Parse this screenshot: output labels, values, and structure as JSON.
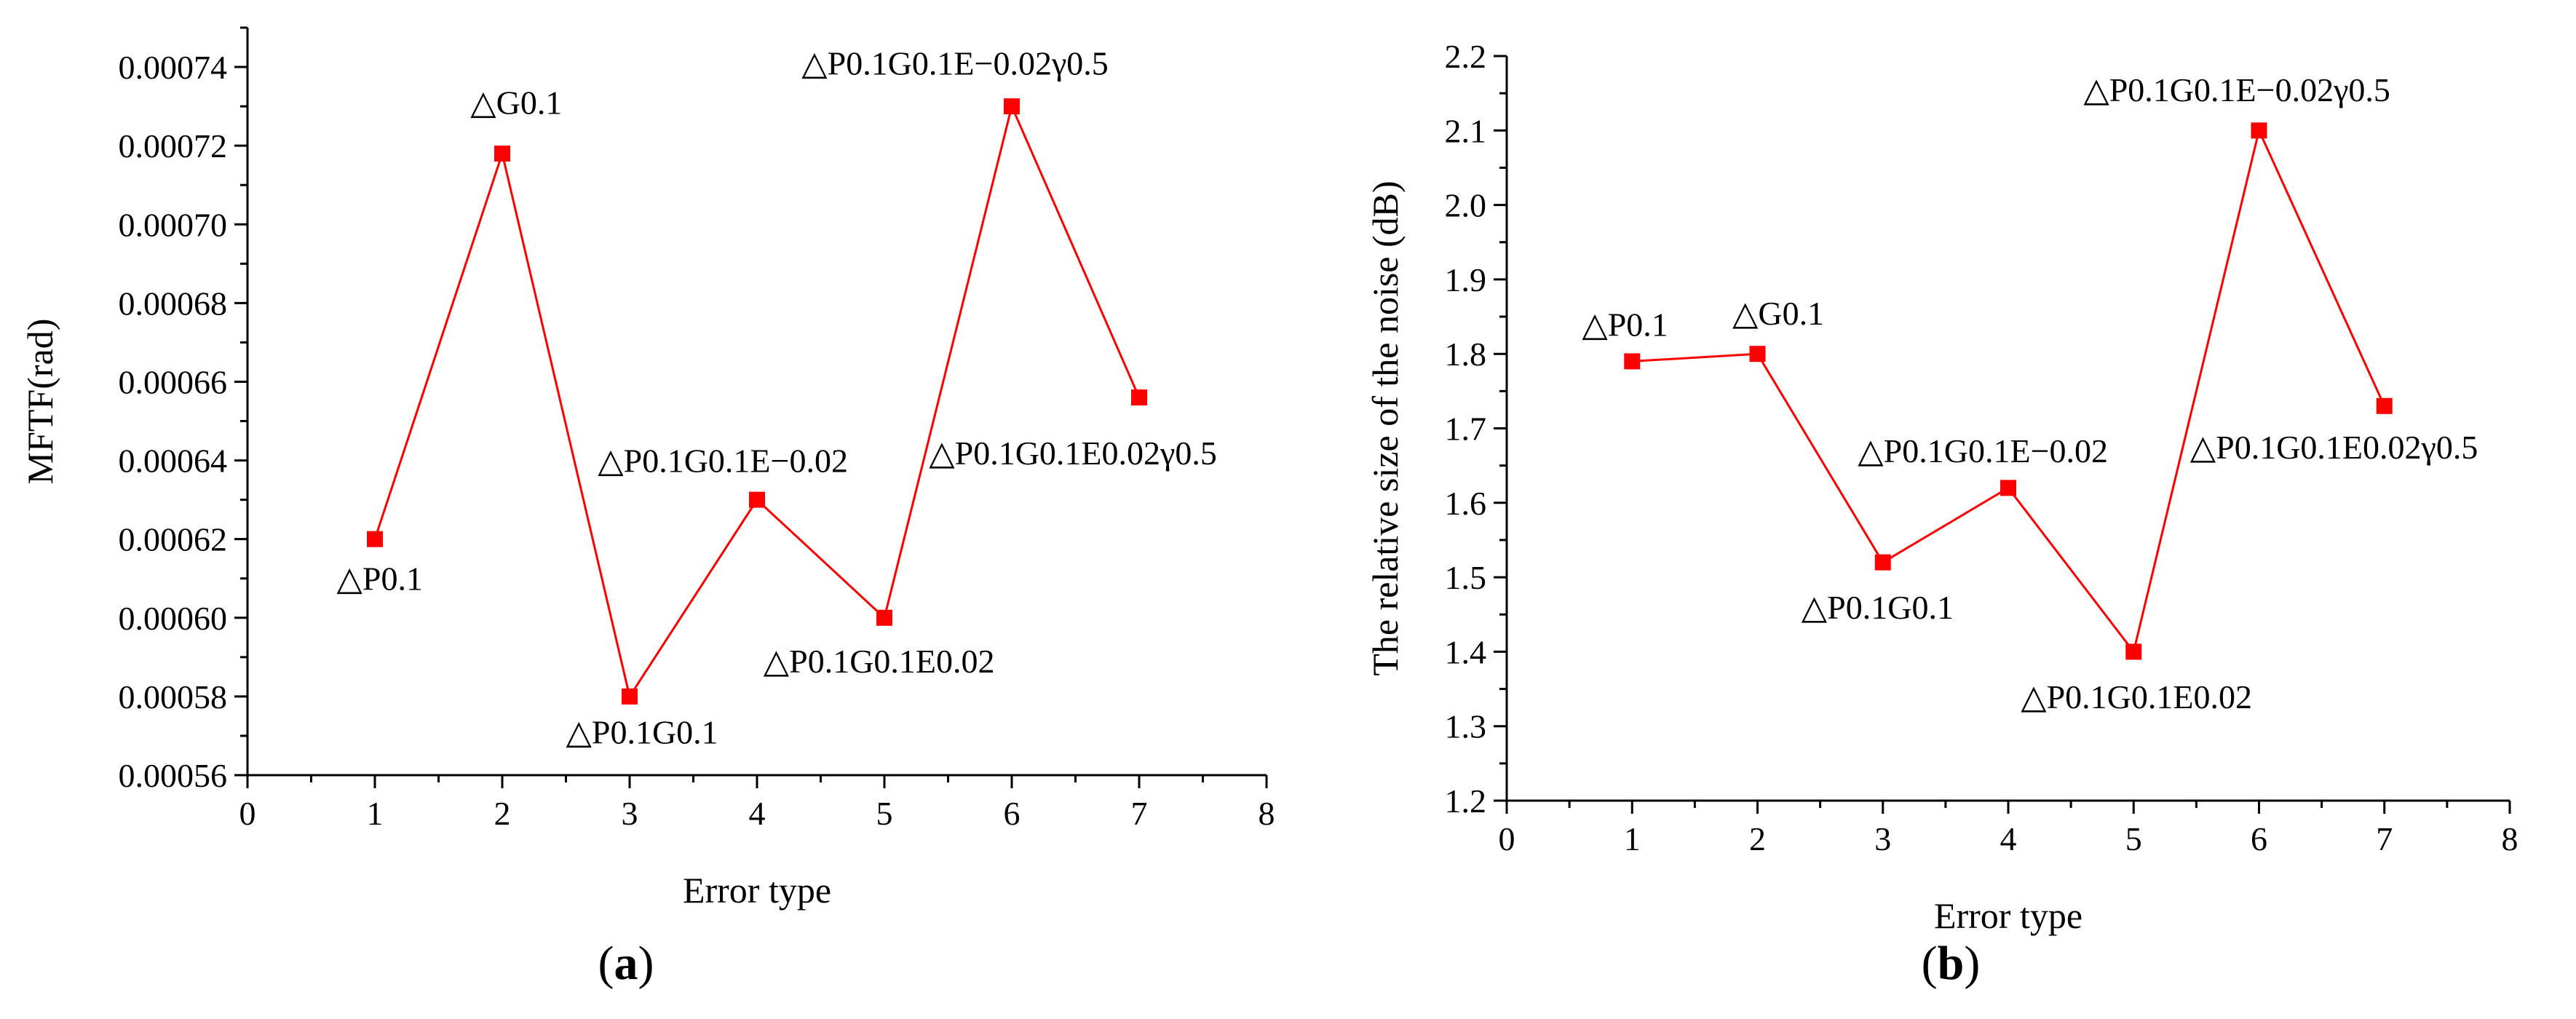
{
  "colors": {
    "series": "#ff0000",
    "axis": "#000000",
    "background": "#ffffff"
  },
  "chart_data": [
    {
      "type": "line",
      "panel_label": "a",
      "xlabel": "Error type",
      "ylabel": "MFTF(rad)",
      "xlim": [
        0,
        8
      ],
      "ylim": [
        0.00056,
        0.00075
      ],
      "x_ticks": [
        0,
        1,
        2,
        3,
        4,
        5,
        6,
        7,
        8
      ],
      "x_tick_labels": [
        "0",
        "1",
        "2",
        "3",
        "4",
        "5",
        "6",
        "7",
        "8"
      ],
      "y_ticks": [
        0.00056,
        0.00058,
        0.0006,
        0.00062,
        0.00064,
        0.00066,
        0.00068,
        0.0007,
        0.00072,
        0.00074
      ],
      "y_tick_labels": [
        "0.00056",
        "0.00058",
        "0.00060",
        "0.00062",
        "0.00064",
        "0.00066",
        "0.00068",
        "0.00070",
        "0.00072",
        "0.00074"
      ],
      "grid": false,
      "marker": "square",
      "series": [
        {
          "x": [
            1,
            2,
            3,
            4,
            5,
            6,
            7
          ],
          "values": [
            0.00062,
            0.000718,
            0.00058,
            0.00063,
            0.0006,
            0.00073,
            0.000656
          ]
        }
      ],
      "annotations": [
        {
          "text": "△P0.1",
          "x": 0.7,
          "y": 0.00061
        },
        {
          "text": "△G0.1",
          "x": 1.75,
          "y": 0.000731
        },
        {
          "text": "△P0.1G0.1",
          "x": 2.5,
          "y": 0.000571
        },
        {
          "text": "△P0.1G0.1E−0.02",
          "x": 2.75,
          "y": 0.00064
        },
        {
          "text": "△P0.1G0.1E0.02",
          "x": 4.05,
          "y": 0.000589
        },
        {
          "text": "△P0.1G0.1E−0.02γ0.5",
          "x": 4.35,
          "y": 0.000741
        },
        {
          "text": "△P0.1G0.1E0.02γ0.5",
          "x": 5.35,
          "y": 0.000642
        }
      ]
    },
    {
      "type": "line",
      "panel_label": "b",
      "xlabel": "Error type",
      "ylabel": "The relative size of the noise (dB)",
      "xlim": [
        0,
        8
      ],
      "ylim": [
        1.2,
        2.2
      ],
      "x_ticks": [
        0,
        1,
        2,
        3,
        4,
        5,
        6,
        7,
        8
      ],
      "x_tick_labels": [
        "0",
        "1",
        "2",
        "3",
        "4",
        "5",
        "6",
        "7",
        "8"
      ],
      "y_ticks": [
        1.2,
        1.3,
        1.4,
        1.5,
        1.6,
        1.7,
        1.8,
        1.9,
        2.0,
        2.1,
        2.2
      ],
      "y_tick_labels": [
        "1.2",
        "1.3",
        "1.4",
        "1.5",
        "1.6",
        "1.7",
        "1.8",
        "1.9",
        "2.0",
        "2.1",
        "2.2"
      ],
      "grid": false,
      "marker": "square",
      "series": [
        {
          "x": [
            1,
            2,
            3,
            4,
            5,
            6,
            7
          ],
          "values": [
            1.79,
            1.8,
            1.52,
            1.62,
            1.4,
            2.1,
            1.73
          ]
        }
      ],
      "annotations": [
        {
          "text": "△P0.1",
          "x": 0.6,
          "y": 1.84
        },
        {
          "text": "△G0.1",
          "x": 1.8,
          "y": 1.855
        },
        {
          "text": "△P0.1G0.1",
          "x": 2.35,
          "y": 1.46
        },
        {
          "text": "△P0.1G0.1E−0.02",
          "x": 2.8,
          "y": 1.67
        },
        {
          "text": "△P0.1G0.1E0.02",
          "x": 4.1,
          "y": 1.34
        },
        {
          "text": "△P0.1G0.1E−0.02γ0.5",
          "x": 4.6,
          "y": 2.155
        },
        {
          "text": "△P0.1G0.1E0.02γ0.5",
          "x": 5.45,
          "y": 1.675
        }
      ]
    }
  ]
}
